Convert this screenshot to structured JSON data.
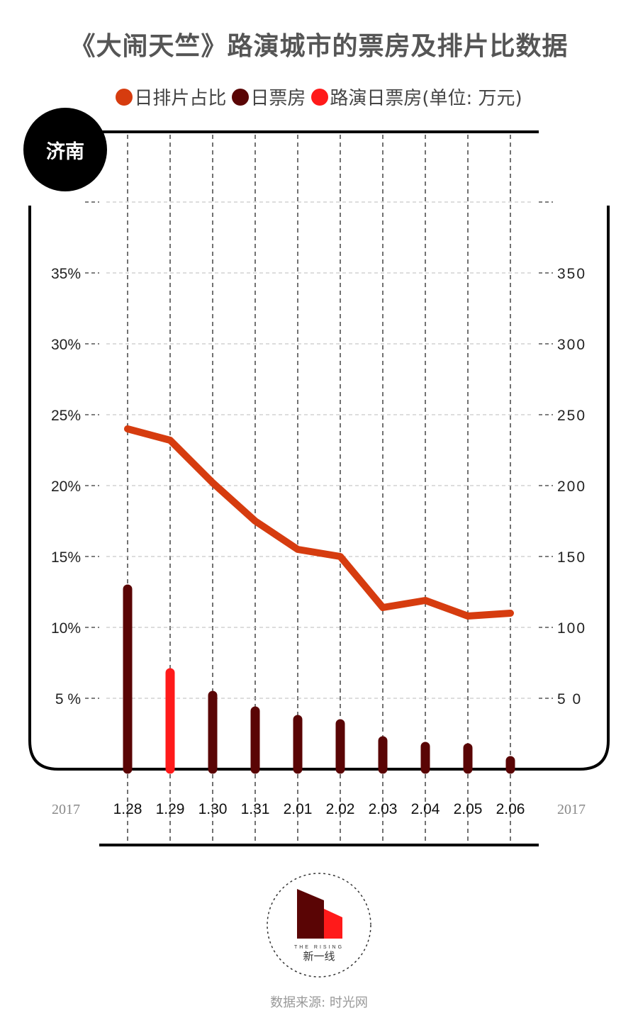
{
  "title": "《大闹天竺》路演城市的票房及排片比数据",
  "city": "济南",
  "legend": [
    {
      "label": "日排片占比",
      "color": "#d63c0f"
    },
    {
      "label": "日票房",
      "color": "#5a0505"
    },
    {
      "label": "路演日票房(单位: 万元)",
      "color": "#ff1a1a"
    }
  ],
  "year_label_left": "2017",
  "year_label_right": "2017",
  "logo": {
    "text_en": "THE RISING",
    "text_cn": "新一线",
    "icon": "rising-logo-icon"
  },
  "source": "数据来源: 时光网",
  "chart_data": {
    "type": "bar+line",
    "categories": [
      "1.28",
      "1.29",
      "1.30",
      "1.31",
      "2.01",
      "2.02",
      "2.03",
      "2.04",
      "2.05",
      "2.06"
    ],
    "y_left": {
      "ticks": [
        "5 %",
        "10%",
        "15%",
        "20%",
        "25%",
        "30%",
        "35%"
      ],
      "tick_values": [
        5,
        10,
        15,
        20,
        25,
        30,
        35
      ],
      "range": [
        0,
        40
      ]
    },
    "y_right": {
      "ticks": [
        "5 0",
        "100",
        "150",
        "200",
        "250",
        "300",
        "350"
      ],
      "tick_values": [
        50,
        100,
        150,
        200,
        250,
        300,
        350
      ],
      "range": [
        0,
        400
      ]
    },
    "series": [
      {
        "name": "日排片占比",
        "type": "line",
        "axis": "left",
        "color": "#d63c0f",
        "values": [
          24.0,
          23.2,
          20.2,
          17.5,
          15.5,
          15.0,
          11.4,
          11.9,
          10.8,
          11.0
        ]
      },
      {
        "name": "日票房",
        "type": "bar",
        "axis": "right",
        "color": "#5a0505",
        "values": [
          127,
          68,
          52,
          41,
          35,
          32,
          20,
          16,
          15,
          6
        ],
        "highlight_index": 1,
        "highlight_color": "#ff1a1a"
      }
    ]
  }
}
